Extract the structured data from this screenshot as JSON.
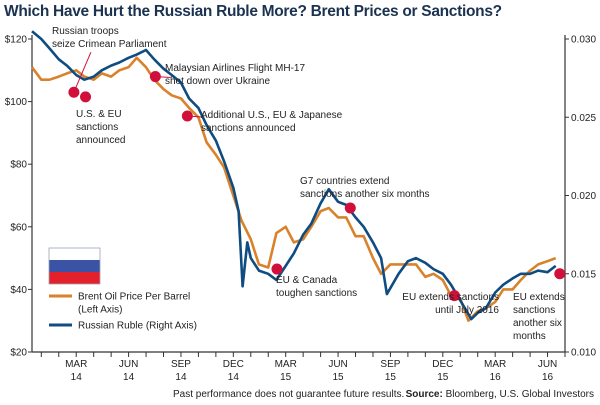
{
  "chart_data": {
    "type": "line",
    "title": "Which Have Hurt the Russian Ruble More? Brent Prices or Sanctions?",
    "left_axis": {
      "ticks": [
        20,
        40,
        60,
        80,
        100,
        120
      ],
      "tick_labels": [
        "$20",
        "$40",
        "$60",
        "$80",
        "$100",
        "$120"
      ],
      "range": [
        20,
        120
      ]
    },
    "right_axis": {
      "ticks": [
        0.01,
        0.015,
        0.02,
        0.025,
        0.03
      ],
      "tick_labels": [
        "0.010",
        "0.015",
        "0.020",
        "0.025",
        "0.030"
      ],
      "range": [
        0.01,
        0.03
      ]
    },
    "x_axis": {
      "range": [
        "2013-12-15",
        "2016-07-01"
      ],
      "tick_labels": [
        {
          "date": "2014-03-01",
          "line1": "MAR",
          "line2": "14"
        },
        {
          "date": "2014-06-01",
          "line1": "JUN",
          "line2": "14"
        },
        {
          "date": "2014-09-01",
          "line1": "SEP",
          "line2": "14"
        },
        {
          "date": "2014-12-01",
          "line1": "DEC",
          "line2": "14"
        },
        {
          "date": "2015-03-01",
          "line1": "MAR",
          "line2": "15"
        },
        {
          "date": "2015-06-01",
          "line1": "JUN",
          "line2": "15"
        },
        {
          "date": "2015-09-01",
          "line1": "SEP",
          "line2": "15"
        },
        {
          "date": "2015-12-01",
          "line1": "DEC",
          "line2": "15"
        },
        {
          "date": "2016-03-01",
          "line1": "MAR",
          "line2": "16"
        },
        {
          "date": "2016-06-01",
          "line1": "JUN",
          "line2": "16"
        }
      ]
    },
    "grid": false,
    "legend_placement": "left",
    "series": [
      {
        "name": "Brent Oil Price Per Barrel (Left Axis)",
        "axis": "left",
        "color": "#d9822b",
        "x": [
          "2013-12-15",
          "2014-01-01",
          "2014-01-15",
          "2014-02-01",
          "2014-02-15",
          "2014-03-01",
          "2014-03-15",
          "2014-04-01",
          "2014-04-15",
          "2014-05-01",
          "2014-05-15",
          "2014-06-01",
          "2014-06-15",
          "2014-07-01",
          "2014-07-15",
          "2014-08-01",
          "2014-08-15",
          "2014-09-01",
          "2014-09-15",
          "2014-10-01",
          "2014-10-15",
          "2014-11-01",
          "2014-11-15",
          "2014-12-01",
          "2014-12-15",
          "2015-01-01",
          "2015-01-15",
          "2015-02-01",
          "2015-02-15",
          "2015-03-01",
          "2015-03-15",
          "2015-04-01",
          "2015-04-15",
          "2015-05-01",
          "2015-05-15",
          "2015-06-01",
          "2015-06-15",
          "2015-07-01",
          "2015-07-15",
          "2015-08-01",
          "2015-08-15",
          "2015-09-01",
          "2015-09-15",
          "2015-10-01",
          "2015-10-15",
          "2015-11-01",
          "2015-11-15",
          "2015-12-01",
          "2015-12-15",
          "2016-01-01",
          "2016-01-15",
          "2016-02-01",
          "2016-02-15",
          "2016-03-01",
          "2016-03-15",
          "2016-04-01",
          "2016-04-15",
          "2016-05-01",
          "2016-05-15",
          "2016-06-01",
          "2016-06-15"
        ],
        "values": [
          111,
          107,
          107,
          108,
          109,
          110,
          108,
          107,
          109,
          108,
          110,
          111,
          114,
          111,
          107,
          104,
          102,
          101,
          98,
          95,
          87,
          83,
          79,
          70,
          62,
          56,
          48,
          47,
          58,
          60,
          55,
          56,
          60,
          65,
          66,
          63,
          63,
          57,
          57,
          50,
          45,
          48,
          48,
          48,
          48,
          44,
          45,
          43,
          38,
          37,
          30,
          33,
          34,
          36,
          40,
          40,
          43,
          46,
          48,
          49,
          50
        ]
      },
      {
        "name": "Russian Ruble (Right Axis)",
        "axis": "right",
        "color": "#0f4c81",
        "x": [
          "2013-12-15",
          "2014-01-01",
          "2014-01-15",
          "2014-02-01",
          "2014-02-15",
          "2014-03-01",
          "2014-03-15",
          "2014-04-01",
          "2014-04-15",
          "2014-05-01",
          "2014-05-15",
          "2014-06-01",
          "2014-06-15",
          "2014-07-01",
          "2014-07-15",
          "2014-08-01",
          "2014-08-15",
          "2014-09-01",
          "2014-09-15",
          "2014-10-01",
          "2014-10-15",
          "2014-11-01",
          "2014-11-15",
          "2014-12-01",
          "2014-12-10",
          "2014-12-17",
          "2014-12-25",
          "2015-01-01",
          "2015-01-15",
          "2015-02-01",
          "2015-02-15",
          "2015-03-01",
          "2015-03-15",
          "2015-04-01",
          "2015-04-15",
          "2015-05-01",
          "2015-05-15",
          "2015-06-01",
          "2015-06-15",
          "2015-07-01",
          "2015-07-15",
          "2015-08-01",
          "2015-08-15",
          "2015-08-25",
          "2015-09-15",
          "2015-10-01",
          "2015-10-15",
          "2015-11-01",
          "2015-11-15",
          "2015-12-01",
          "2015-12-15",
          "2016-01-01",
          "2016-01-20",
          "2016-02-01",
          "2016-02-15",
          "2016-03-01",
          "2016-03-15",
          "2016-04-01",
          "2016-04-15",
          "2016-05-01",
          "2016-05-15",
          "2016-06-01",
          "2016-06-15"
        ],
        "values": [
          0.0305,
          0.03,
          0.0294,
          0.0287,
          0.0283,
          0.0277,
          0.0274,
          0.0276,
          0.028,
          0.0283,
          0.0285,
          0.0288,
          0.029,
          0.0293,
          0.0287,
          0.0281,
          0.0277,
          0.0272,
          0.0262,
          0.0256,
          0.0245,
          0.0235,
          0.0222,
          0.0205,
          0.019,
          0.0142,
          0.017,
          0.016,
          0.0152,
          0.015,
          0.0146,
          0.0155,
          0.0163,
          0.0175,
          0.0182,
          0.0195,
          0.0204,
          0.0196,
          0.0194,
          0.0186,
          0.018,
          0.017,
          0.016,
          0.0137,
          0.015,
          0.0158,
          0.016,
          0.0157,
          0.0153,
          0.015,
          0.0143,
          0.0133,
          0.0121,
          0.0125,
          0.0128,
          0.0138,
          0.0143,
          0.0147,
          0.015,
          0.015,
          0.0152,
          0.0151,
          0.0155
        ]
      }
    ],
    "annotations": [
      {
        "date": "2014-02-27",
        "value": 103,
        "label": [
          "Russian troops",
          "seize Crimean Parliament"
        ]
      },
      {
        "date": "2014-03-17",
        "value": 101.5,
        "label": [
          "U.S. & EU",
          "sanctions",
          "announced"
        ]
      },
      {
        "date": "2014-07-17",
        "value": 108,
        "label": [
          "Malaysian Airlines Flight MH-17",
          "shot down over Ukraine"
        ]
      },
      {
        "date": "2014-09-12",
        "value": 95.4,
        "label": [
          "Additional U.S., EU & Japanese",
          "sanctions announced"
        ]
      },
      {
        "date": "2015-02-16",
        "value": 46.5,
        "label": [
          "EU & Canada",
          "toughen sanctions"
        ]
      },
      {
        "date": "2015-06-22",
        "value": 66,
        "label": [
          "G7 countries extend",
          "sanctions another six months"
        ]
      },
      {
        "date": "2015-12-21",
        "value": 38,
        "label": [
          "EU extends sanctions",
          "until July 2016"
        ]
      },
      {
        "date": "2016-06-22",
        "value": 45,
        "label": [
          "EU extends",
          "sanctions",
          "another six",
          "months"
        ]
      }
    ],
    "annotation_color": "#d0103a"
  },
  "legend": {
    "items": [
      {
        "label1": "Brent Oil Price Per Barrel",
        "label2": "(Left Axis)",
        "color": "#d9822b"
      },
      {
        "label1": "Russian Ruble (Right Axis)",
        "label2": "",
        "color": "#0f4c81"
      }
    ],
    "flag_colors": [
      "#ffffff",
      "#3a53a4",
      "#e4202a"
    ]
  },
  "footer": {
    "disclaimer": "Past performance does not guarantee future results.",
    "source_label": "Source:",
    "source_text": " Bloomberg, U.S. Global Investors"
  }
}
